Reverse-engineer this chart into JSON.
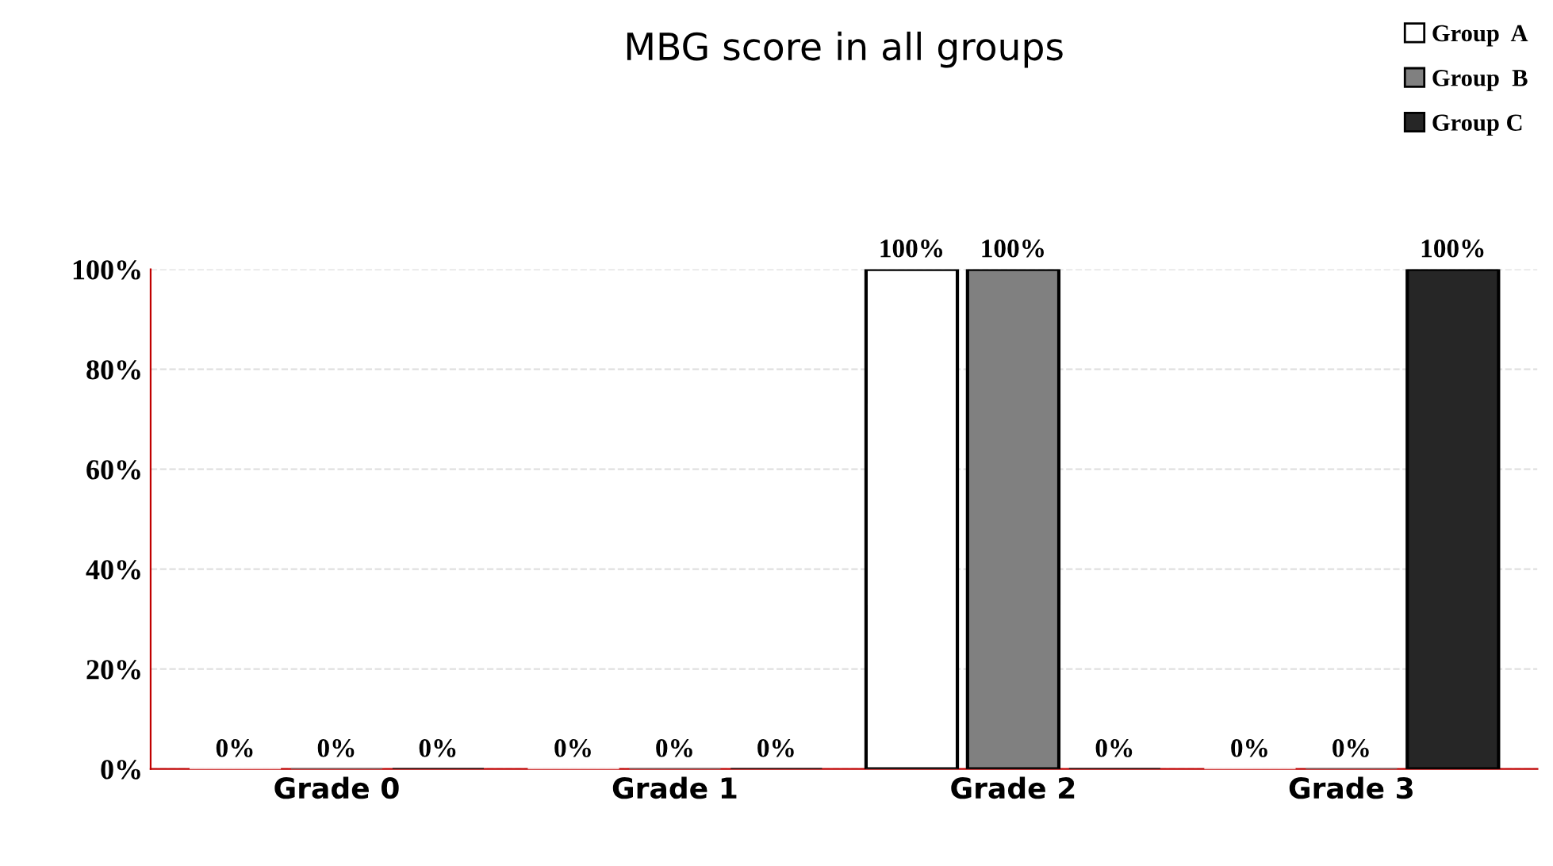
{
  "chart_data": {
    "type": "bar",
    "title": "MBG score in all groups",
    "categories": [
      "Grade 0",
      "Grade 1",
      "Grade 2",
      "Grade 3"
    ],
    "series": [
      {
        "name": "Group  A",
        "color": "#ffffff",
        "values": [
          0,
          0,
          100,
          0
        ],
        "value_labels": [
          "0%",
          "0%",
          "100%",
          "0%"
        ]
      },
      {
        "name": "Group  B",
        "color": "#808080",
        "values": [
          0,
          0,
          100,
          0
        ],
        "value_labels": [
          "0%",
          "0%",
          "100%",
          "0%"
        ]
      },
      {
        "name": "Group C",
        "color": "#262626",
        "values": [
          0,
          0,
          0,
          100
        ],
        "value_labels": [
          "0%",
          "0%",
          "0%",
          "100%"
        ]
      }
    ],
    "ylim": [
      0,
      100
    ],
    "yticks": [
      {
        "value": 0,
        "label": "0%"
      },
      {
        "value": 20,
        "label": "20%"
      },
      {
        "value": 40,
        "label": "40%"
      },
      {
        "value": 60,
        "label": "60%"
      },
      {
        "value": 80,
        "label": "80%"
      },
      {
        "value": 100,
        "label": "100%"
      }
    ],
    "grid": "y",
    "legend": "top right"
  }
}
